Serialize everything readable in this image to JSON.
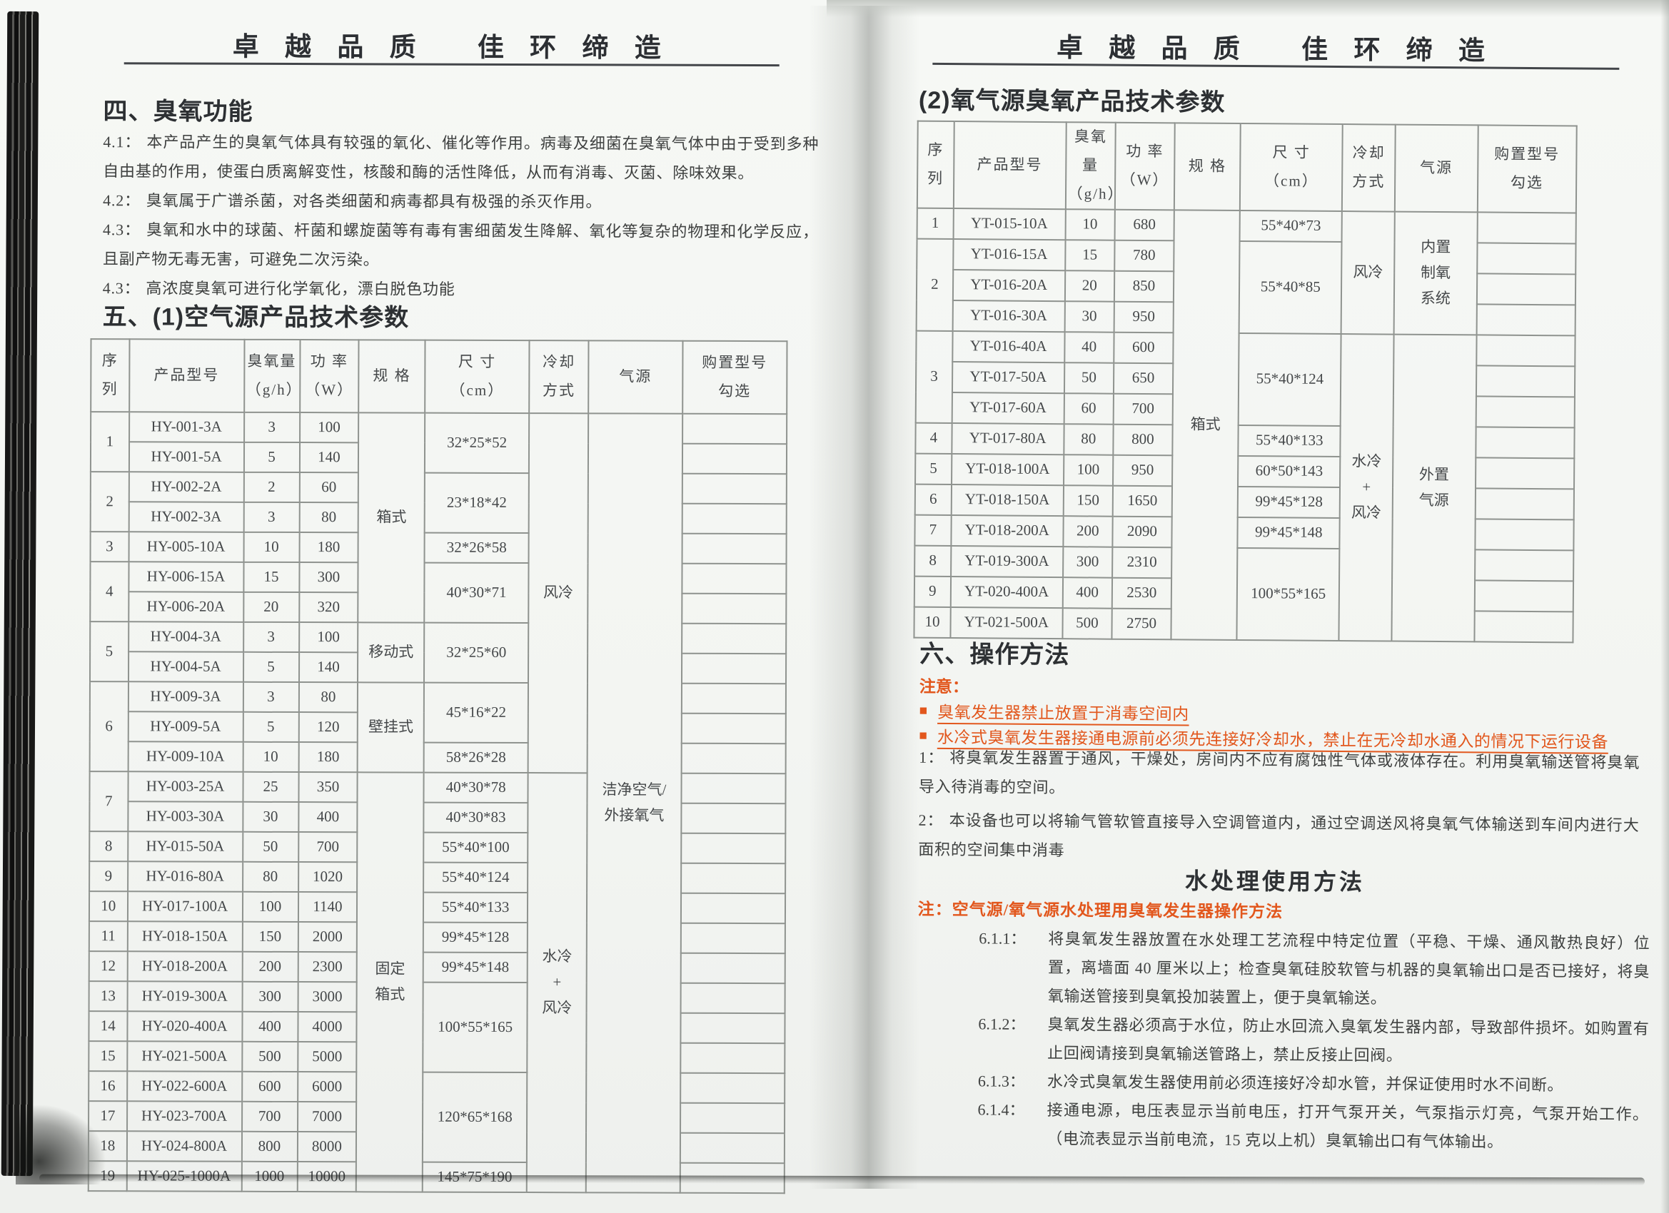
{
  "page_header": "卓 越 品 质　 佳 环 缔 造",
  "colors": {
    "accent_orange": "#e2571d",
    "ink": "#3f4140",
    "table_border": "#8f938f",
    "paper": "#f5f7f4"
  },
  "left_page": {
    "section4_title": "四、臭氧功能",
    "paragraphs": [
      {
        "label": "4.1：",
        "text": "本产品产生的臭氧气体具有较强的氧化、催化等作用。病毒及细菌在臭氧气体中由于受到多种自由基的作用，使蛋白质离解变性，核酸和酶的活性降低，从而有消毒、灭菌、除味效果。"
      },
      {
        "label": "4.2：",
        "text": "臭氧属于广谱杀菌，对各类细菌和病毒都具有极强的杀灭作用。"
      },
      {
        "label": "4.3：",
        "text": "臭氧和水中的球菌、杆菌和螺旋菌等有毒有害细菌发生降解、氧化等复杂的物理和化学反应，且副产物无毒无害，可避免二次污染。"
      },
      {
        "label": "4.3：",
        "text": "高浓度臭氧可进行化学氧化，漂白脱色功能"
      }
    ],
    "section5_title": "五、(1)空气源产品技术参数",
    "table": {
      "headers": [
        "序\n列",
        "产品型号",
        "臭氧量\n（g/h）",
        "功 率\n（W）",
        "规 格",
        "尺 寸\n（cm）",
        "冷却\n方式",
        "气源",
        "购置型号\n勾选"
      ],
      "rows": [
        [
          {
            "t": "1",
            "rs": 2
          },
          "HY-001-3A",
          "3",
          "100",
          {
            "t": "箱式",
            "rs": 7
          },
          {
            "t": "32*25*52",
            "rs": 2
          },
          {
            "t": "风冷",
            "rs": 12
          },
          {
            "t": "洁净空气/\n外接氧气",
            "rs": 26
          },
          ""
        ],
        [
          "HY-001-5A",
          "5",
          "140",
          ""
        ],
        [
          {
            "t": "2",
            "rs": 2
          },
          "HY-002-2A",
          "2",
          "60",
          {
            "t": "23*18*42",
            "rs": 2
          },
          ""
        ],
        [
          "HY-002-3A",
          "3",
          "80",
          ""
        ],
        [
          "3",
          "HY-005-10A",
          "10",
          "180",
          "32*26*58",
          ""
        ],
        [
          {
            "t": "4",
            "rs": 2
          },
          "HY-006-15A",
          "15",
          "300",
          {
            "t": "40*30*71",
            "rs": 2
          },
          ""
        ],
        [
          "HY-006-20A",
          "20",
          "320",
          ""
        ],
        [
          {
            "t": "5",
            "rs": 2
          },
          "HY-004-3A",
          "3",
          "100",
          {
            "t": "移动式",
            "rs": 2
          },
          {
            "t": "32*25*60",
            "rs": 2
          },
          ""
        ],
        [
          "HY-004-5A",
          "5",
          "140",
          ""
        ],
        [
          {
            "t": "6",
            "rs": 3
          },
          "HY-009-3A",
          "3",
          "80",
          {
            "t": "壁挂式",
            "rs": 3
          },
          {
            "t": "45*16*22",
            "rs": 2
          },
          ""
        ],
        [
          "HY-009-5A",
          "5",
          "120",
          ""
        ],
        [
          "HY-009-10A",
          "10",
          "180",
          "58*26*28",
          ""
        ],
        [
          {
            "t": "7",
            "rs": 2
          },
          "HY-003-25A",
          "25",
          "350",
          {
            "t": "固定\n箱式",
            "rs": 14
          },
          "40*30*78",
          {
            "t": "水冷\n+\n风冷",
            "rs": 14
          },
          ""
        ],
        [
          "HY-003-30A",
          "30",
          "400",
          "40*30*83",
          ""
        ],
        [
          "8",
          "HY-015-50A",
          "50",
          "700",
          "55*40*100",
          ""
        ],
        [
          "9",
          "HY-016-80A",
          "80",
          "1020",
          "55*40*124",
          ""
        ],
        [
          "10",
          "HY-017-100A",
          "100",
          "1140",
          "55*40*133",
          ""
        ],
        [
          "11",
          "HY-018-150A",
          "150",
          "2000",
          "99*45*128",
          ""
        ],
        [
          "12",
          "HY-018-200A",
          "200",
          "2300",
          "99*45*148",
          ""
        ],
        [
          "13",
          "HY-019-300A",
          "300",
          "3000",
          {
            "t": "100*55*165",
            "rs": 3
          },
          ""
        ],
        [
          "14",
          "HY-020-400A",
          "400",
          "4000",
          ""
        ],
        [
          "15",
          "HY-021-500A",
          "500",
          "5000",
          ""
        ],
        [
          "16",
          "HY-022-600A",
          "600",
          "6000",
          {
            "t": "120*65*168",
            "rs": 3
          },
          ""
        ],
        [
          "17",
          "HY-023-700A",
          "700",
          "7000",
          ""
        ],
        [
          "18",
          "HY-024-800A",
          "800",
          "8000",
          ""
        ],
        [
          "19",
          "HY-025-1000A",
          "1000",
          "10000",
          "145*75*190",
          ""
        ]
      ]
    }
  },
  "right_page": {
    "section2_title": "(2)氧气源臭氧产品技术参数",
    "table": {
      "headers": [
        "序\n列",
        "产品型号",
        "臭氧量\n（g/h）",
        "功 率\n（W）",
        "规 格",
        "尺 寸\n（cm）",
        "冷却\n方式",
        "气源",
        "购置型号\n勾选"
      ],
      "rows": [
        [
          "1",
          "YT-015-10A",
          "10",
          "680",
          {
            "t": "箱式",
            "rs": 14
          },
          "55*40*73",
          {
            "t": "风冷",
            "rs": 4
          },
          {
            "t": "内置\n制氧\n系统",
            "rs": 4
          },
          ""
        ],
        [
          {
            "t": "2",
            "rs": 3
          },
          "YT-016-15A",
          "15",
          "780",
          {
            "t": "55*40*85",
            "rs": 3
          },
          ""
        ],
        [
          "YT-016-20A",
          "20",
          "850",
          ""
        ],
        [
          "YT-016-30A",
          "30",
          "950",
          ""
        ],
        [
          {
            "t": "3",
            "rs": 3
          },
          "YT-016-40A",
          "40",
          "600",
          {
            "t": "55*40*124",
            "rs": 3
          },
          {
            "t": "水冷\n+\n风冷",
            "rs": 10
          },
          {
            "t": "外置\n气源",
            "rs": 10
          },
          ""
        ],
        [
          "YT-017-50A",
          "50",
          "650",
          ""
        ],
        [
          "YT-017-60A",
          "60",
          "700",
          ""
        ],
        [
          "4",
          "YT-017-80A",
          "80",
          "800",
          "55*40*133",
          ""
        ],
        [
          "5",
          "YT-018-100A",
          "100",
          "950",
          "60*50*143",
          ""
        ],
        [
          "6",
          "YT-018-150A",
          "150",
          "1650",
          "99*45*128",
          ""
        ],
        [
          "7",
          "YT-018-200A",
          "200",
          "2090",
          "99*45*148",
          ""
        ],
        [
          "8",
          "YT-019-300A",
          "300",
          "2310",
          {
            "t": "100*55*165",
            "rs": 3
          },
          ""
        ],
        [
          "9",
          "YT-020-400A",
          "400",
          "2530",
          ""
        ],
        [
          "10",
          "YT-021-500A",
          "500",
          "2750",
          ""
        ]
      ]
    },
    "section6_title": "六、操作方法",
    "notice_label": "注意：",
    "warning_bullet": "■",
    "warnings": [
      "臭氧发生器禁止放置于消毒空间内",
      "水冷式臭氧发生器接通电源前必须先连接好冷却水，禁止在无冷却水通入的情况下运行设备"
    ],
    "steps": [
      {
        "label": "1：",
        "text": "将臭氧发生器置于通风，干燥处，房间内不应有腐蚀性气体或液体存在。利用臭氧输送管将臭氧导入待消毒的空间。"
      },
      {
        "label": "2：",
        "text": "本设备也可以将输气管软管直接导入空调管道内，通过空调送风将臭氧气体输送到车间内进行大面积的空间集中消毒"
      }
    ],
    "water_title": "水处理使用方法",
    "water_note": "注：空气源/氧气源水处理用臭氧发生器操作方法",
    "water_steps": [
      {
        "label": "6.1.1：",
        "text": "将臭氧发生器放置在水处理工艺流程中特定位置（平稳、干燥、通风散热良好）位置，离墙面 40 厘米以上；检查臭氧硅胶软管与机器的臭氧输出口是否已接好，将臭氧输送管接到臭氧投加装置上，便于臭氧输送。"
      },
      {
        "label": "6.1.2：",
        "text": "臭氧发生器必须高于水位，防止水回流入臭氧发生器内部，导致部件损坏。如购置有止回阀请接到臭氧输送管路上，禁止反接止回阀。"
      },
      {
        "label": "6.1.3：",
        "text": "水冷式臭氧发生器使用前必须连接好冷却水管，并保证使用时水不间断。"
      },
      {
        "label": "6.1.4：",
        "text": "接通电源，电压表显示当前电压，打开气泵开关，气泵指示灯亮，气泵开始工作。（电流表显示当前电流，15 克以上机）臭氧输出口有气体输出。"
      }
    ]
  }
}
